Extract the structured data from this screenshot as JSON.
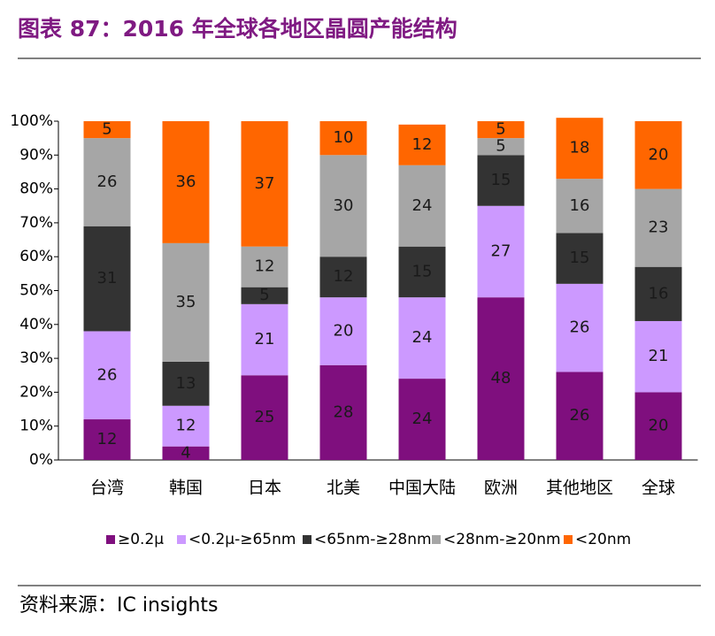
{
  "header": {
    "title": "图表 87：2016 年全球各地区晶圆产能结构"
  },
  "chart_data": {
    "type": "stacked_bar",
    "categories": [
      "台湾",
      "韩国",
      "日本",
      "北美",
      "中国大陆",
      "欧洲",
      "其他地区",
      "全球"
    ],
    "series": [
      {
        "name": "≥0.2μ",
        "color": "#7f0f7e",
        "values": [
          12,
          4,
          25,
          28,
          24,
          48,
          26,
          20
        ]
      },
      {
        "name": "<0.2μ-≥65nm",
        "color": "#cc99ff",
        "values": [
          26,
          12,
          21,
          20,
          24,
          27,
          26,
          21
        ]
      },
      {
        "name": "<65nm-≥28nm",
        "color": "#333333",
        "values": [
          31,
          13,
          5,
          12,
          15,
          15,
          15,
          16
        ]
      },
      {
        "name": "<28nm-≥20nm",
        "color": "#a6a6a6",
        "values": [
          26,
          35,
          12,
          30,
          24,
          5,
          16,
          23
        ]
      },
      {
        "name": "<20nm",
        "color": "#ff6600",
        "values": [
          5,
          36,
          37,
          10,
          12,
          5,
          18,
          20
        ]
      }
    ],
    "ylim": [
      0,
      100
    ],
    "yticks": [
      {
        "value": 0,
        "label": "0%"
      },
      {
        "value": 10,
        "label": "10%"
      },
      {
        "value": 20,
        "label": "20%"
      },
      {
        "value": 30,
        "label": "30%"
      },
      {
        "value": 40,
        "label": "40%"
      },
      {
        "value": 50,
        "label": "50%"
      },
      {
        "value": 60,
        "label": "60%"
      },
      {
        "value": 70,
        "label": "70%"
      },
      {
        "value": 80,
        "label": "80%"
      },
      {
        "value": 90,
        "label": "90%"
      },
      {
        "value": 100,
        "label": "100%"
      }
    ],
    "legend": "bottom"
  },
  "footer": {
    "source": "资料来源：IC insights"
  }
}
